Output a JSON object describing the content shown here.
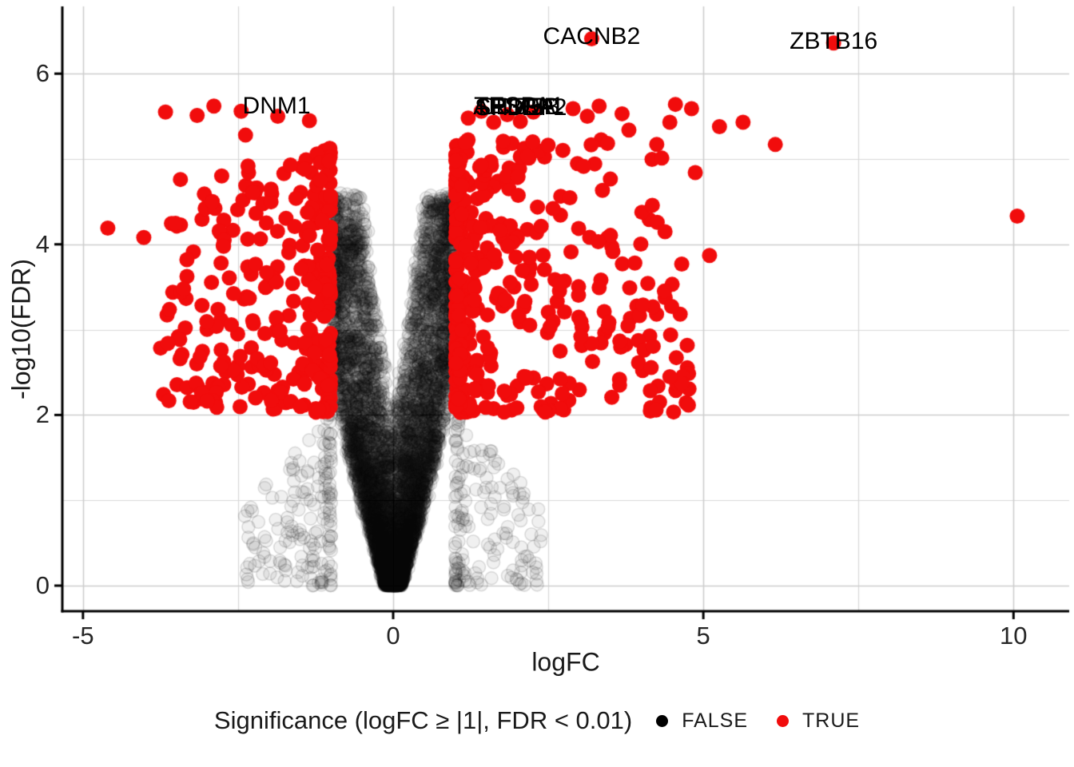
{
  "chart_data": {
    "type": "scatter",
    "subtype": "volcano-plot",
    "title": "",
    "xlabel": "logFC",
    "ylabel": "-log10(FDR)",
    "xlim": [
      -5.35,
      10.9
    ],
    "ylim": [
      -0.3,
      6.8
    ],
    "grid": true,
    "x_ticks": [
      {
        "v": -5,
        "label": "-5"
      },
      {
        "v": 0,
        "label": "0"
      },
      {
        "v": 5,
        "label": "5"
      },
      {
        "v": 10,
        "label": "10"
      }
    ],
    "y_ticks": [
      {
        "v": 0,
        "label": "0"
      },
      {
        "v": 2,
        "label": "2"
      },
      {
        "v": 4,
        "label": "4"
      },
      {
        "v": 6,
        "label": "6"
      }
    ],
    "x_minor": [
      -2.5,
      2.5,
      7.5
    ],
    "y_minor": [
      1,
      3,
      5
    ],
    "colors": {
      "true_points": "#F10C0C",
      "false_points": "#000000",
      "grid_major": "#cdcdcd",
      "grid_minor": "#d8d8d8",
      "axis": "#000000",
      "tick_text": "#262626"
    },
    "threshold": {
      "logfc_abs": 1,
      "fdr": 0.01,
      "neglog10_fdr_cutoff": 2
    },
    "gene_labels": [
      {
        "text": "CACNB2",
        "x": 3.2,
        "y": 6.43,
        "overlap": false
      },
      {
        "text": "ZBTB16",
        "x": 7.1,
        "y": 6.38,
        "overlap": false
      },
      {
        "text": "DNM1",
        "x": -1.88,
        "y": 5.62,
        "overlap": false
      },
      {
        "text": "ARID5B",
        "x": 1.99,
        "y": 5.61,
        "overlap": true
      },
      {
        "text": "SPDEF",
        "x": 1.96,
        "y": 5.6,
        "overlap": true
      },
      {
        "text": "TESPA1",
        "x": 2.03,
        "y": 5.62,
        "overlap": true
      },
      {
        "text": "CD79A",
        "x": 2.0,
        "y": 5.61,
        "overlap": true
      },
      {
        "text": "SH3BP2",
        "x": 2.06,
        "y": 5.6,
        "overlap": true
      }
    ],
    "gene_labels_note": "the five 'overlap' labels are over-plotted on top of each other in the source image and are not individually legible; transcription approximate",
    "true_outlier_points": [
      [
        -4.6,
        4.19
      ],
      [
        -4.02,
        4.08
      ],
      [
        -3.63,
        2.84
      ],
      [
        -3.67,
        5.55
      ],
      [
        -3.16,
        5.51
      ],
      [
        -2.89,
        5.62
      ],
      [
        -2.45,
        5.56
      ],
      [
        -1.86,
        5.5
      ],
      [
        -1.35,
        5.45
      ],
      [
        -2.38,
        5.28
      ],
      [
        1.21,
        5.48
      ],
      [
        1.42,
        5.56
      ],
      [
        1.62,
        5.43
      ],
      [
        1.84,
        5.52
      ],
      [
        2.05,
        5.44
      ],
      [
        2.26,
        5.55
      ],
      [
        2.9,
        5.59
      ],
      [
        3.13,
        5.5
      ],
      [
        3.32,
        5.62
      ],
      [
        3.69,
        5.53
      ],
      [
        3.8,
        5.34
      ],
      [
        4.46,
        5.43
      ],
      [
        4.55,
        5.64
      ],
      [
        4.81,
        5.59
      ],
      [
        5.26,
        5.38
      ],
      [
        5.64,
        5.43
      ],
      [
        6.16,
        5.17
      ],
      [
        4.87,
        4.84
      ],
      [
        5.1,
        3.87
      ],
      [
        3.65,
        2.35
      ],
      [
        10.06,
        4.33
      ],
      [
        3.2,
        6.41
      ],
      [
        7.1,
        6.36
      ]
    ],
    "point_cloud_model": {
      "seed": 20240601,
      "false_alpha_fill": 0.06,
      "false_alpha_stroke": 0.13,
      "point_radius": {
        "true": 9.5,
        "false": 8
      },
      "false_core": {
        "n": 9000,
        "y_max": 4.55,
        "y_pow": 2.6,
        "outer": {
          "base": 0.1,
          "lin": 0.46,
          "quad": -0.042,
          "cap": 1.03
        },
        "inner": {
          "start_y": 1.9,
          "slope": 0.2
        },
        "edge_pow": 0.8,
        "jitter_x": 0.025,
        "jitter_y": 0.03
      },
      "false_skirt": {
        "n": 330,
        "x_base": 1.0,
        "x_spread": 1.4,
        "x_pow": 2.2,
        "y_cap_base": 2.05,
        "y_cap_slope": 0.75,
        "y_pow": 1.3
      },
      "true_left": {
        "n": 300,
        "x_edge": -1.01,
        "x_spread": 2.75,
        "x_pow": 2.3,
        "y_base": 2.03,
        "y_spread": 3.1,
        "y_pow": 1.2
      },
      "true_right": {
        "n": 390,
        "x_edge": 1.01,
        "x_spread": 3.85,
        "x_pow": 2.4,
        "y_base": 2.03,
        "y_spread": 3.2,
        "y_pow": 1.12
      }
    },
    "legend": {
      "title": "Significance (logFC ≥ |1|, FDR < 0.01)",
      "position": "bottom-center",
      "items": [
        {
          "label": "FALSE",
          "color": "#000000"
        },
        {
          "label": "TRUE",
          "color": "#F10C0C"
        }
      ]
    }
  }
}
